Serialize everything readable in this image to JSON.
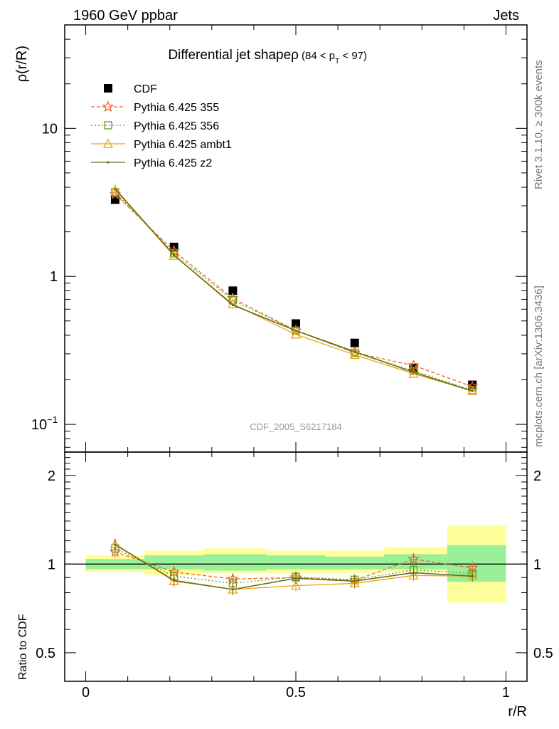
{
  "header": {
    "left": "1960 GeV ppbar",
    "right": "Jets"
  },
  "side_labels": {
    "rivet": "Rivet 3.1.10, ≥ 300k events",
    "mcplots": "mcplots.cern.ch [arXiv:1306.3436]"
  },
  "chart_data": [
    {
      "type": "line",
      "title": "Differential jet shapeρ",
      "title_cut": "(84 < p_T < 97)",
      "ylabel": "ρ(r/R)",
      "yscale": "log",
      "ylim": [
        0.065,
        50
      ],
      "xlim": [
        -0.05,
        1.05
      ],
      "y_tick_labels": [
        "10^{-1}",
        "1",
        "10"
      ],
      "watermark": "CDF_2005_S6217184",
      "legend_position": "top-left",
      "x": [
        0.07,
        0.21,
        0.35,
        0.5,
        0.64,
        0.78,
        0.92
      ],
      "series": [
        {
          "name": "CDF",
          "style": "data",
          "color": "#000000",
          "values": [
            3.3,
            1.58,
            0.8,
            0.48,
            0.355,
            0.24,
            0.185
          ]
        },
        {
          "name": "Pythia 6.425 355",
          "style": "star",
          "color": "#ee6622",
          "values": [
            3.6,
            1.48,
            0.71,
            0.43,
            0.305,
            0.25,
            0.18
          ]
        },
        {
          "name": "Pythia 6.425 356",
          "style": "square",
          "color": "#6a9a1a",
          "values": [
            3.7,
            1.43,
            0.69,
            0.43,
            0.305,
            0.23,
            0.17
          ]
        },
        {
          "name": "Pythia 6.425 ambt1",
          "style": "triangle",
          "color": "#e8a410",
          "values": [
            3.85,
            1.38,
            0.65,
            0.405,
            0.295,
            0.22,
            0.168
          ]
        },
        {
          "name": "Pythia 6.425 z2",
          "style": "dot",
          "color": "#6a6e10",
          "values": [
            3.9,
            1.39,
            0.64,
            0.43,
            0.31,
            0.225,
            0.168
          ]
        }
      ]
    },
    {
      "type": "line",
      "ylabel": "Ratio to CDF",
      "xlabel": "r/R",
      "yscale": "log",
      "ylim": [
        0.4,
        2.4
      ],
      "xlim": [
        -0.05,
        1.05
      ],
      "x_tick_labels": [
        "0",
        "0.5",
        "1"
      ],
      "y_tick_labels": [
        "0.5",
        "1",
        "2"
      ],
      "x_bin_edges": [
        0,
        0.14,
        0.28,
        0.43,
        0.57,
        0.71,
        0.86,
        1.0
      ],
      "band_yellow": [
        [
          0.94,
          1.07
        ],
        [
          0.92,
          1.11
        ],
        [
          0.93,
          1.13
        ],
        [
          0.93,
          1.11
        ],
        [
          0.93,
          1.11
        ],
        [
          0.94,
          1.14
        ],
        [
          0.74,
          1.35
        ]
      ],
      "band_green": [
        [
          0.96,
          1.04
        ],
        [
          0.96,
          1.07
        ],
        [
          0.95,
          1.08
        ],
        [
          0.96,
          1.07
        ],
        [
          0.96,
          1.06
        ],
        [
          0.96,
          1.08
        ],
        [
          0.87,
          1.16
        ]
      ],
      "x": [
        0.07,
        0.21,
        0.35,
        0.5,
        0.64,
        0.78,
        0.92
      ],
      "series": [
        {
          "name": "Pythia 6.425 355",
          "values": [
            1.1,
            0.94,
            0.89,
            0.9,
            0.88,
            1.04,
            0.97
          ]
        },
        {
          "name": "Pythia 6.425 356",
          "values": [
            1.13,
            0.91,
            0.86,
            0.905,
            0.885,
            0.955,
            0.93
          ]
        },
        {
          "name": "Pythia 6.425 ambt1",
          "values": [
            1.17,
            0.875,
            0.82,
            0.845,
            0.86,
            0.915,
            0.91
          ]
        },
        {
          "name": "Pythia 6.425 z2",
          "values": [
            1.165,
            0.88,
            0.82,
            0.895,
            0.875,
            0.935,
            0.91
          ]
        }
      ]
    }
  ]
}
